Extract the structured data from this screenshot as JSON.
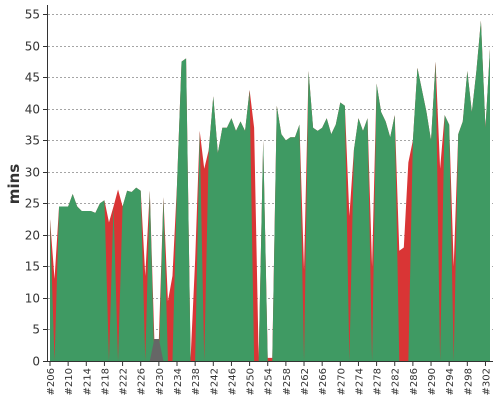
{
  "chart_data": {
    "type": "area",
    "title": "",
    "xlabel": "",
    "ylabel": "mins",
    "ylim": [
      0,
      56
    ],
    "yticks": [
      0,
      5,
      10,
      15,
      20,
      25,
      30,
      35,
      40,
      45,
      50,
      55
    ],
    "grid": true,
    "legend": "none",
    "tick_labels": [
      "#206",
      "#210",
      "#214",
      "#218",
      "#222",
      "#226",
      "#230",
      "#234",
      "#238",
      "#242",
      "#246",
      "#250",
      "#254",
      "#258",
      "#262",
      "#266",
      "#270",
      "#274",
      "#278",
      "#282",
      "#286",
      "#290",
      "#294",
      "#298",
      "#302"
    ],
    "build_range": [
      206,
      303
    ],
    "colors": {
      "success": "#3f9a63",
      "failure": "#d93535",
      "aborted": "#666666"
    },
    "series": [
      {
        "status": "failure",
        "points": [
          [
            206,
            22.5
          ],
          [
            207,
            13
          ],
          [
            208,
            24.5
          ],
          [
            209,
            24.5
          ],
          [
            210,
            24.5
          ],
          [
            211,
            26.5
          ],
          [
            212,
            24.5
          ],
          [
            213,
            23.8
          ],
          [
            214,
            23.8
          ],
          [
            215,
            23.8
          ],
          [
            216,
            23.5
          ],
          [
            217,
            25
          ],
          [
            218,
            25.5
          ],
          [
            219,
            22
          ],
          [
            220,
            24.5
          ],
          [
            221,
            27.2
          ],
          [
            222,
            24.5
          ],
          [
            223,
            27
          ],
          [
            224,
            26.8
          ],
          [
            225,
            27.5
          ],
          [
            226,
            27
          ],
          [
            227,
            13.5
          ],
          [
            228,
            27
          ],
          [
            229,
            3.5
          ],
          [
            230,
            3.5
          ],
          [
            231,
            26
          ],
          [
            232,
            9.5
          ],
          [
            233,
            13.5
          ],
          [
            234,
            28
          ],
          [
            235,
            47.5
          ],
          [
            236,
            48
          ],
          [
            237,
            0.5
          ],
          [
            238,
            16
          ],
          [
            239,
            36.5
          ],
          [
            240,
            30.5
          ],
          [
            241,
            33.5
          ],
          [
            242,
            42
          ],
          [
            243,
            33
          ],
          [
            244,
            37
          ],
          [
            245,
            37
          ],
          [
            246,
            38.5
          ],
          [
            247,
            36.5
          ],
          [
            248,
            38
          ],
          [
            249,
            36.5
          ],
          [
            250,
            43
          ],
          [
            251,
            37
          ],
          [
            252,
            0.5
          ],
          [
            253,
            35
          ],
          [
            254,
            0.5
          ],
          [
            255,
            0.5
          ],
          [
            256,
            40.5
          ],
          [
            257,
            36
          ],
          [
            258,
            35
          ],
          [
            259,
            35.5
          ],
          [
            260,
            35.5
          ],
          [
            261,
            37.5
          ],
          [
            262,
            14.5
          ],
          [
            263,
            46
          ],
          [
            264,
            37
          ],
          [
            265,
            36.5
          ],
          [
            266,
            37
          ],
          [
            267,
            38.5
          ],
          [
            268,
            36
          ],
          [
            269,
            37.5
          ],
          [
            270,
            41
          ],
          [
            271,
            40.5
          ],
          [
            272,
            23
          ],
          [
            273,
            33.5
          ],
          [
            274,
            38.5
          ],
          [
            275,
            36.5
          ],
          [
            276,
            38.5
          ],
          [
            277,
            15
          ],
          [
            278,
            44
          ],
          [
            279,
            39.5
          ],
          [
            280,
            38
          ],
          [
            281,
            35.5
          ],
          [
            282,
            39
          ],
          [
            283,
            17.5
          ],
          [
            284,
            18
          ],
          [
            285,
            31.5
          ],
          [
            286,
            35
          ],
          [
            287,
            46.5
          ],
          [
            288,
            43
          ],
          [
            289,
            39.5
          ],
          [
            290,
            35
          ],
          [
            291,
            47.5
          ],
          [
            292,
            30.5
          ],
          [
            293,
            39
          ],
          [
            294,
            37.5
          ],
          [
            295,
            15
          ],
          [
            296,
            36
          ],
          [
            297,
            38
          ],
          [
            298,
            46
          ],
          [
            299,
            39.5
          ],
          [
            300,
            46
          ],
          [
            301,
            54
          ],
          [
            302,
            37
          ],
          [
            303,
            49.5
          ]
        ]
      },
      {
        "status": "success",
        "points": [
          [
            206,
            22.5
          ],
          [
            207,
            0
          ],
          [
            208,
            24.5
          ],
          [
            209,
            24.5
          ],
          [
            210,
            24.5
          ],
          [
            211,
            26.5
          ],
          [
            212,
            24.5
          ],
          [
            213,
            23.8
          ],
          [
            214,
            23.8
          ],
          [
            215,
            23.8
          ],
          [
            216,
            23.5
          ],
          [
            217,
            25
          ],
          [
            218,
            25.5
          ],
          [
            219,
            0
          ],
          [
            220,
            24.5
          ],
          [
            221,
            0
          ],
          [
            222,
            24.5
          ],
          [
            223,
            27
          ],
          [
            224,
            26.8
          ],
          [
            225,
            27.5
          ],
          [
            226,
            27
          ],
          [
            227,
            0
          ],
          [
            228,
            27
          ],
          [
            229,
            0
          ],
          [
            230,
            0
          ],
          [
            231,
            26
          ],
          [
            232,
            0
          ],
          [
            233,
            0
          ],
          [
            234,
            28
          ],
          [
            235,
            47.5
          ],
          [
            236,
            48
          ],
          [
            237,
            0
          ],
          [
            238,
            0
          ],
          [
            239,
            36.5
          ],
          [
            240,
            0
          ],
          [
            241,
            33.5
          ],
          [
            242,
            42
          ],
          [
            243,
            33
          ],
          [
            244,
            37
          ],
          [
            245,
            37
          ],
          [
            246,
            38.5
          ],
          [
            247,
            36.5
          ],
          [
            248,
            38
          ],
          [
            249,
            36.5
          ],
          [
            250,
            43
          ],
          [
            251,
            0
          ],
          [
            252,
            0
          ],
          [
            253,
            35
          ],
          [
            254,
            0
          ],
          [
            255,
            0
          ],
          [
            256,
            40.5
          ],
          [
            257,
            36
          ],
          [
            258,
            35
          ],
          [
            259,
            35.5
          ],
          [
            260,
            35.5
          ],
          [
            261,
            37.5
          ],
          [
            262,
            0
          ],
          [
            263,
            46
          ],
          [
            264,
            37
          ],
          [
            265,
            36.5
          ],
          [
            266,
            37
          ],
          [
            267,
            38.5
          ],
          [
            268,
            36
          ],
          [
            269,
            37.5
          ],
          [
            270,
            41
          ],
          [
            271,
            40.5
          ],
          [
            272,
            0
          ],
          [
            273,
            33.5
          ],
          [
            274,
            38.5
          ],
          [
            275,
            36.5
          ],
          [
            276,
            38.5
          ],
          [
            277,
            0
          ],
          [
            278,
            44
          ],
          [
            279,
            39.5
          ],
          [
            280,
            38
          ],
          [
            281,
            35.5
          ],
          [
            282,
            39
          ],
          [
            283,
            0
          ],
          [
            284,
            0
          ],
          [
            285,
            0
          ],
          [
            286,
            35
          ],
          [
            287,
            46.5
          ],
          [
            288,
            43
          ],
          [
            289,
            39.5
          ],
          [
            290,
            35
          ],
          [
            291,
            47.5
          ],
          [
            292,
            0
          ],
          [
            293,
            39
          ],
          [
            294,
            37.5
          ],
          [
            295,
            0
          ],
          [
            296,
            36
          ],
          [
            297,
            38
          ],
          [
            298,
            46
          ],
          [
            299,
            39.5
          ],
          [
            300,
            46
          ],
          [
            301,
            54
          ],
          [
            302,
            37
          ],
          [
            303,
            49.5
          ]
        ]
      },
      {
        "status": "aborted",
        "points": [
          [
            228,
            0
          ],
          [
            229,
            3.5
          ],
          [
            230,
            3.5
          ],
          [
            231,
            0
          ]
        ]
      }
    ]
  }
}
